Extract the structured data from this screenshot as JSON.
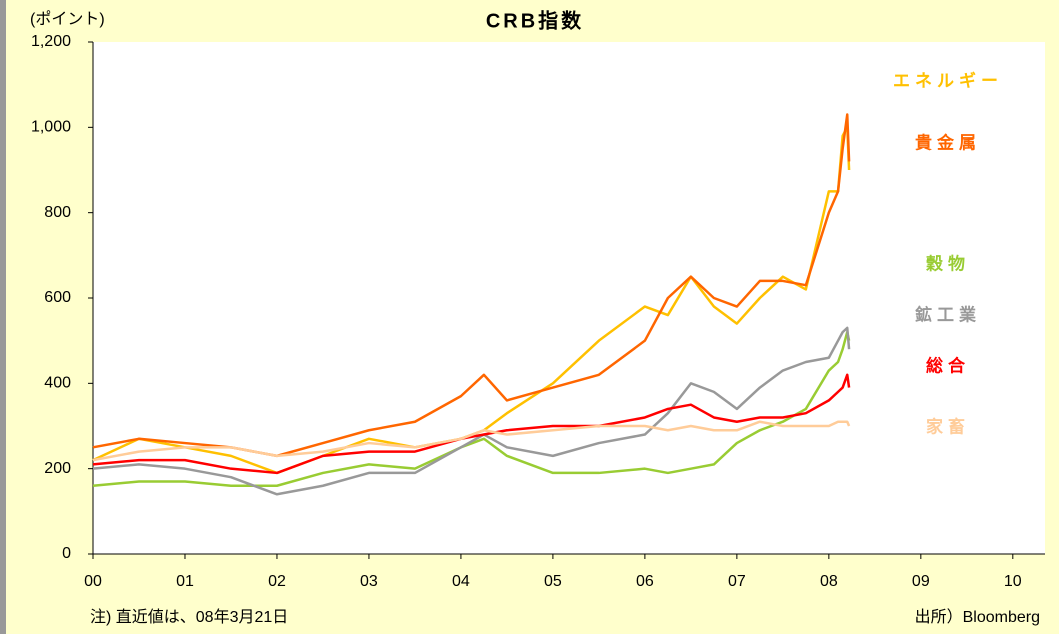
{
  "chart_data": {
    "type": "line",
    "title": "CRB指数",
    "y_label": "(ポイント)",
    "note": "注) 直近値は、08年3月21日",
    "source": "出所）Bloomberg",
    "x": [
      0,
      0.5,
      1,
      1.5,
      2,
      2.5,
      3,
      3.5,
      4,
      4.25,
      4.5,
      5,
      5.5,
      6,
      6.25,
      6.5,
      6.75,
      7,
      7.25,
      7.5,
      7.75,
      8,
      8.1,
      8.15,
      8.2,
      8.22
    ],
    "xlim": [
      0,
      10.35
    ],
    "xticks": [
      {
        "value": 0,
        "label": "00"
      },
      {
        "value": 1,
        "label": "01"
      },
      {
        "value": 2,
        "label": "02"
      },
      {
        "value": 3,
        "label": "03"
      },
      {
        "value": 4,
        "label": "04"
      },
      {
        "value": 5,
        "label": "05"
      },
      {
        "value": 6,
        "label": "06"
      },
      {
        "value": 7,
        "label": "07"
      },
      {
        "value": 8,
        "label": "08"
      },
      {
        "value": 9,
        "label": "09"
      },
      {
        "value": 10,
        "label": "10"
      }
    ],
    "ylim": [
      0,
      1200
    ],
    "yticks": [
      0,
      200,
      400,
      600,
      800,
      {
        "value": 1000,
        "label": "1,000"
      },
      {
        "value": 1200,
        "label": "1,200"
      }
    ],
    "grid": false,
    "series": [
      {
        "name": "エネルギー",
        "color": "#ffc000",
        "values": [
          220,
          270,
          250,
          230,
          190,
          230,
          270,
          250,
          270,
          290,
          330,
          400,
          500,
          580,
          560,
          650,
          580,
          540,
          600,
          650,
          620,
          850,
          850,
          980,
          1000,
          900
        ]
      },
      {
        "name": "貴金属",
        "color": "#ff6600",
        "values": [
          250,
          270,
          260,
          250,
          230,
          260,
          290,
          310,
          370,
          420,
          360,
          390,
          420,
          500,
          600,
          650,
          600,
          580,
          640,
          640,
          630,
          800,
          850,
          950,
          1030,
          920
        ]
      },
      {
        "name": "穀物",
        "color": "#99cc33",
        "values": [
          160,
          170,
          170,
          160,
          160,
          190,
          210,
          200,
          250,
          270,
          230,
          190,
          190,
          200,
          190,
          200,
          210,
          260,
          290,
          310,
          340,
          430,
          450,
          480,
          520,
          500
        ]
      },
      {
        "name": "鉱工業",
        "color": "#999999",
        "values": [
          200,
          210,
          200,
          180,
          140,
          160,
          190,
          190,
          250,
          280,
          250,
          230,
          260,
          280,
          330,
          400,
          380,
          340,
          390,
          430,
          450,
          460,
          500,
          520,
          530,
          480
        ]
      },
      {
        "name": "総合",
        "color": "#ff0000",
        "values": [
          210,
          220,
          220,
          200,
          190,
          230,
          240,
          240,
          270,
          280,
          290,
          300,
          300,
          320,
          340,
          350,
          320,
          310,
          320,
          320,
          330,
          360,
          380,
          390,
          420,
          390
        ]
      },
      {
        "name": "家畜",
        "color": "#ffcc99",
        "values": [
          220,
          240,
          250,
          250,
          230,
          240,
          260,
          250,
          270,
          290,
          280,
          290,
          300,
          300,
          290,
          300,
          290,
          290,
          310,
          300,
          300,
          300,
          310,
          310,
          310,
          300
        ]
      }
    ]
  }
}
